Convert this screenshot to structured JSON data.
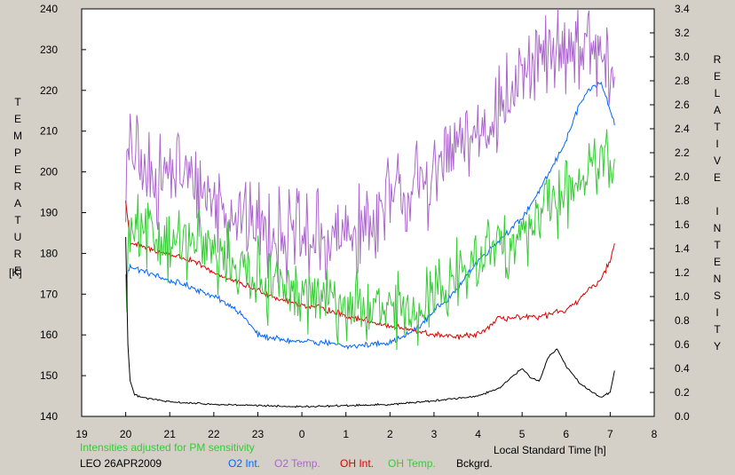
{
  "chart_data": {
    "type": "line",
    "left_axis": {
      "label": "TEMPERATURE",
      "unit": "[K]",
      "range": [
        140,
        240
      ],
      "ticks": [
        "140",
        "150",
        "160",
        "170",
        "180",
        "190",
        "200",
        "210",
        "220",
        "230",
        "240"
      ]
    },
    "right_axis": {
      "label": "RELATIVE INTENSITY",
      "range": [
        0,
        3.4
      ],
      "ticks": [
        "0.0",
        "0.2",
        "0.4",
        "0.6",
        "0.8",
        "1.0",
        "1.2",
        "1.4",
        "1.6",
        "1.8",
        "2.0",
        "2.2",
        "2.4",
        "2.6",
        "2.8",
        "3.0",
        "3.2",
        "3.4"
      ]
    },
    "x_axis": {
      "label": "Local Standard Time [h]",
      "range": [
        19,
        32
      ],
      "ticks": [
        "19",
        "20",
        "21",
        "22",
        "23",
        "0",
        "1",
        "2",
        "3",
        "4",
        "5",
        "6",
        "7",
        "8"
      ]
    },
    "note": "Intensities adjusted for PM sensitivity",
    "station": "LEO 26APR2009",
    "legend": [
      {
        "label": "O2 Int.",
        "color": "#0066ff"
      },
      {
        "label": "O2 Temp.",
        "color": "#aa66cc"
      },
      {
        "label": "OH Int.",
        "color": "#dd0000"
      },
      {
        "label": "OH Temp.",
        "color": "#33cc33"
      },
      {
        "label": "Bckgrd.",
        "color": "#000000"
      }
    ],
    "series": [
      {
        "name": "O2 Int.",
        "axis": "right",
        "color": "#0066ff",
        "noise": 0.02,
        "x": [
          20.0,
          20.1,
          20.5,
          21.0,
          21.5,
          22.0,
          22.5,
          22.8,
          23.0,
          23.5,
          24.0,
          24.5,
          25.0,
          25.5,
          26.0,
          26.3,
          26.7,
          27.0,
          27.5,
          28.0,
          28.5,
          29.0,
          29.5,
          30.0,
          30.3,
          30.6,
          30.8,
          31.0,
          31.1
        ],
        "y": [
          1.15,
          1.25,
          1.2,
          1.13,
          1.08,
          1.0,
          0.9,
          0.78,
          0.68,
          0.64,
          0.62,
          0.62,
          0.58,
          0.6,
          0.62,
          0.66,
          0.76,
          0.88,
          1.05,
          1.3,
          1.48,
          1.65,
          1.95,
          2.3,
          2.6,
          2.75,
          2.78,
          2.55,
          2.45
        ]
      },
      {
        "name": "O2 Temp.",
        "axis": "left",
        "color": "#aa66cc",
        "noise": 9,
        "x": [
          20.0,
          20.1,
          20.5,
          21.0,
          21.5,
          22.0,
          22.5,
          23.0,
          23.5,
          24.0,
          24.5,
          25.0,
          25.5,
          26.0,
          26.5,
          27.0,
          27.5,
          28.0,
          28.5,
          29.0,
          29.5,
          30.0,
          30.5,
          30.8,
          31.0,
          31.1
        ],
        "y": [
          195,
          205,
          198,
          200,
          198,
          193,
          190,
          187,
          185,
          183,
          183,
          184,
          187,
          192,
          195,
          200,
          205,
          210,
          216,
          222,
          228,
          231,
          230,
          228,
          223,
          220
        ]
      },
      {
        "name": "OH Int.",
        "axis": "right",
        "color": "#dd0000",
        "noise": 0.02,
        "x": [
          20.0,
          20.1,
          20.5,
          21.0,
          21.5,
          22.0,
          22.5,
          23.0,
          23.5,
          24.0,
          24.5,
          25.0,
          25.5,
          26.0,
          26.5,
          27.0,
          27.5,
          28.0,
          28.5,
          29.0,
          29.5,
          30.0,
          30.5,
          30.8,
          31.0,
          31.1
        ],
        "y": [
          1.8,
          1.45,
          1.4,
          1.35,
          1.3,
          1.2,
          1.12,
          1.05,
          0.98,
          0.93,
          0.9,
          0.84,
          0.8,
          0.75,
          0.72,
          0.68,
          0.66,
          0.68,
          0.82,
          0.82,
          0.84,
          0.88,
          1.05,
          1.15,
          1.3,
          1.45
        ]
      },
      {
        "name": "OH Temp.",
        "axis": "left",
        "color": "#33cc33",
        "noise": 7,
        "x": [
          20.0,
          20.1,
          20.5,
          21.0,
          21.5,
          22.0,
          22.5,
          23.0,
          23.5,
          24.0,
          24.5,
          25.0,
          25.5,
          26.0,
          26.5,
          27.0,
          27.5,
          28.0,
          28.5,
          29.0,
          29.5,
          30.0,
          30.5,
          30.8,
          31.0,
          31.1
        ],
        "y": [
          170,
          185,
          184,
          183,
          182,
          180,
          178,
          174,
          171,
          170,
          169,
          167,
          166,
          165,
          166,
          170,
          175,
          178,
          182,
          185,
          190,
          195,
          200,
          203,
          200,
          196
        ]
      },
      {
        "name": "Bckgrd.",
        "axis": "right",
        "color": "#000000",
        "noise": 0.006,
        "x": [
          20.0,
          20.02,
          20.05,
          20.1,
          20.2,
          20.5,
          21.0,
          22.0,
          23.0,
          24.0,
          25.0,
          26.0,
          27.0,
          28.0,
          28.5,
          28.8,
          29.0,
          29.2,
          29.4,
          29.6,
          29.8,
          30.0,
          30.3,
          30.6,
          30.8,
          31.0,
          31.1
        ],
        "y": [
          1.5,
          1.1,
          0.6,
          0.3,
          0.18,
          0.15,
          0.12,
          0.1,
          0.09,
          0.08,
          0.09,
          0.1,
          0.13,
          0.17,
          0.24,
          0.34,
          0.4,
          0.32,
          0.3,
          0.5,
          0.56,
          0.42,
          0.28,
          0.2,
          0.16,
          0.2,
          0.38
        ]
      }
    ]
  }
}
